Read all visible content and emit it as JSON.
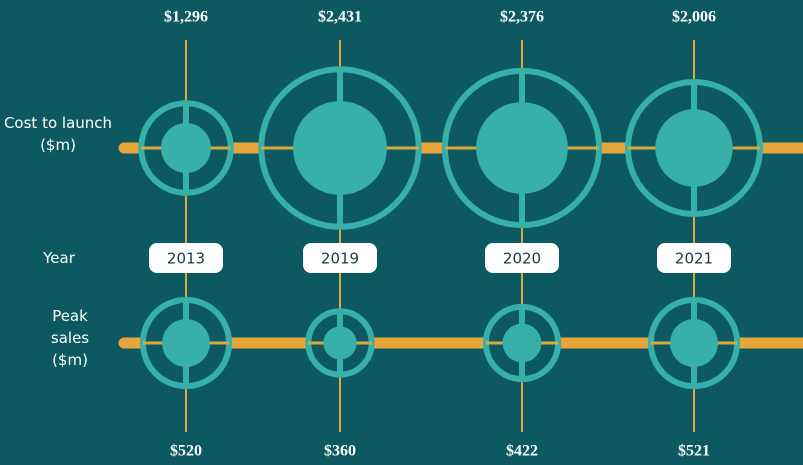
{
  "chart_data": {
    "type": "bubble",
    "categories": [
      "2013",
      "2019",
      "2020",
      "2021"
    ],
    "category_label": "Year",
    "series": [
      {
        "name": "Cost to launch ($m)",
        "color": "#36b0a8",
        "values": [
          1296,
          2431,
          2376,
          2006
        ],
        "value_labels": [
          "$1,296",
          "$2,431",
          "$2,376",
          "$2,006"
        ]
      },
      {
        "name": "Peak sales ($m)",
        "color": "#36b0a8",
        "values": [
          520,
          360,
          422,
          521
        ],
        "value_labels": [
          "$520",
          "$360",
          "$422",
          "$521"
        ]
      }
    ],
    "line_color": "#e8a63a"
  }
}
